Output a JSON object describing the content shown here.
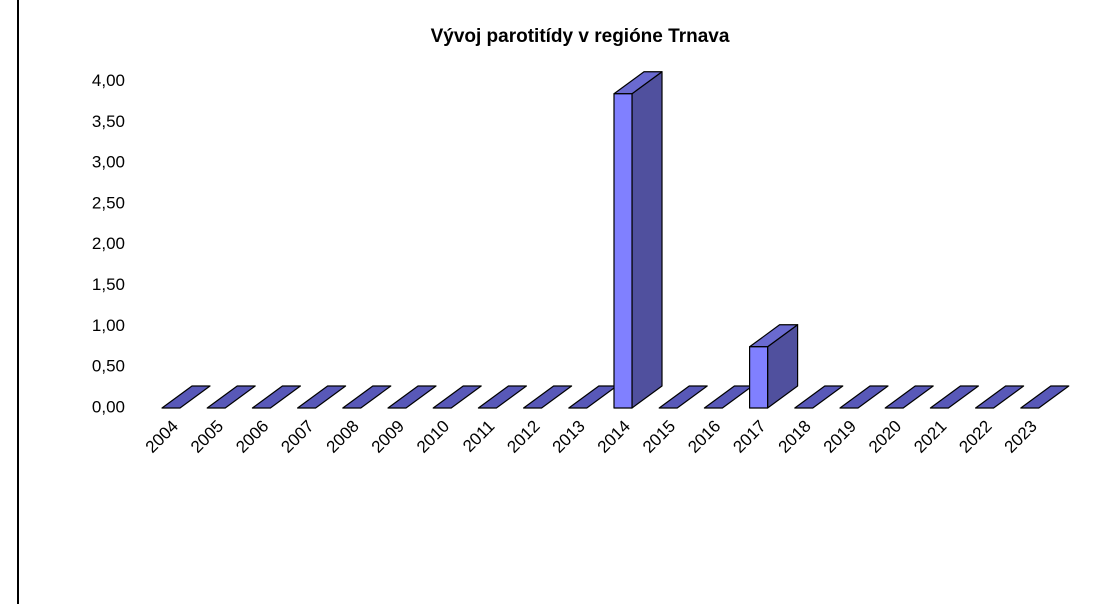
{
  "chart_data": {
    "type": "bar3d",
    "title": "Vývoj parotitídy v regióne Trnava",
    "categories": [
      "2004",
      "2005",
      "2006",
      "2007",
      "2008",
      "2009",
      "2010",
      "2011",
      "2012",
      "2013",
      "2014",
      "2015",
      "2016",
      "2017",
      "2018",
      "2019",
      "2020",
      "2021",
      "2022",
      "2023"
    ],
    "values": [
      0,
      0,
      0,
      0,
      0,
      0,
      0,
      0,
      0,
      0,
      3.85,
      0,
      0,
      0.75,
      0,
      0,
      0,
      0,
      0,
      0
    ],
    "color": "#8080ff",
    "ylim": [
      0,
      4
    ],
    "yticks": [
      {
        "value": 0,
        "label": "0,00"
      },
      {
        "value": 0.5,
        "label": "0,50"
      },
      {
        "value": 1,
        "label": "1,00"
      },
      {
        "value": 1.5,
        "label": "1,50"
      },
      {
        "value": 2,
        "label": "2,00"
      },
      {
        "value": 2.5,
        "label": "2,50"
      },
      {
        "value": 3,
        "label": "3,00"
      },
      {
        "value": 3.5,
        "label": "3,50"
      },
      {
        "value": 4,
        "label": "4,00"
      }
    ],
    "grid": false
  }
}
